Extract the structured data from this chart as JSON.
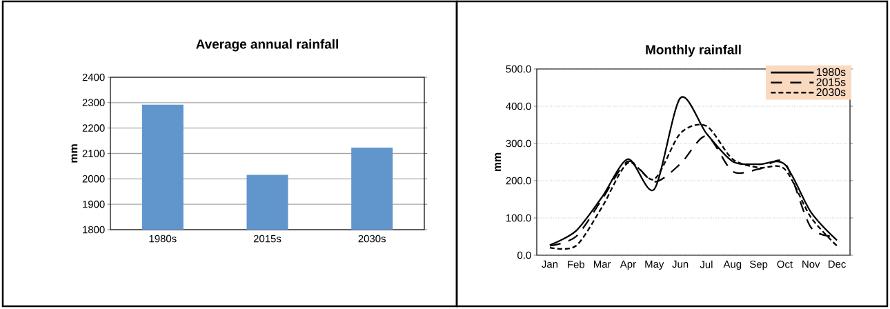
{
  "chart_data": [
    {
      "type": "bar",
      "title": "Average annual rainfall",
      "ylabel": "mm",
      "categories": [
        "1980s",
        "2015s",
        "2030s"
      ],
      "values": [
        2292,
        2016,
        2123
      ],
      "color": "#6196cc",
      "ylim": [
        1800,
        2400
      ],
      "yticks": [
        1800,
        1900,
        2000,
        2100,
        2200,
        2300,
        2400
      ],
      "grid": "y"
    },
    {
      "type": "line",
      "title": "Monthly rainfall",
      "ylabel": "mm",
      "categories": [
        "Jan",
        "Feb",
        "Mar",
        "Apr",
        "May",
        "Jun",
        "Jul",
        "Aug",
        "Sep",
        "Oct",
        "Nov",
        "Dec"
      ],
      "ylim": [
        0,
        500
      ],
      "yticks": [
        {
          "value": 0,
          "label": "0.0"
        },
        {
          "value": 100,
          "label": "100.0"
        },
        {
          "value": 200,
          "label": "200.0"
        },
        {
          "value": 300,
          "label": "300.0"
        },
        {
          "value": 400,
          "label": "400.0"
        },
        {
          "value": 500,
          "label": "500.0"
        }
      ],
      "grid": "y",
      "legend": "top right",
      "marker": "none",
      "series": [
        {
          "name": "1980s",
          "color": "#000000",
          "line_style": "solid",
          "values": [
            27,
            65,
            156,
            258,
            177,
            422,
            327,
            252,
            244,
            244,
            116,
            40
          ]
        },
        {
          "name": "2015s",
          "color": "#000000",
          "line_style": "dashed",
          "values": [
            25,
            50,
            150,
            252,
            197,
            245,
            320,
            225,
            231,
            248,
            75,
            50
          ]
        },
        {
          "name": "2030s",
          "color": "#000000",
          "line_style": "dashed",
          "values": [
            20,
            25,
            129,
            248,
            204,
            327,
            347,
            258,
            235,
            231,
            102,
            25
          ]
        }
      ]
    }
  ]
}
